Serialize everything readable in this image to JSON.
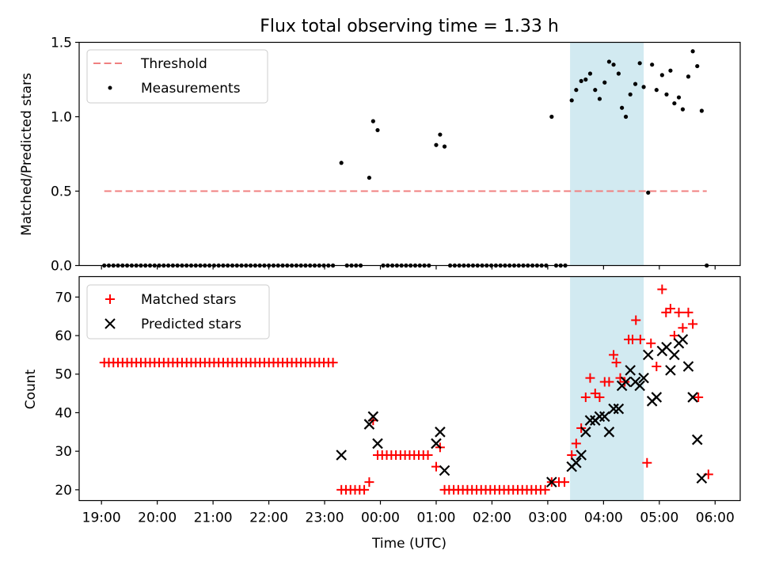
{
  "figure": {
    "title": "Flux total observing time = 1.33 h"
  },
  "chart_data": [
    {
      "type": "scatter",
      "panel": "top",
      "ylabel": "Matched/Predicted stars",
      "xlabel": "",
      "ylim": [
        0,
        1.5
      ],
      "yticks": [
        "0.0",
        "0.5",
        "1.0",
        "1.5"
      ],
      "threshold": {
        "label": "Threshold",
        "value": 0.5,
        "x_start": 19.05,
        "x_end": 29.85,
        "color": "#f08080"
      },
      "shaded_region": {
        "x_start": 27.4,
        "x_end": 28.72,
        "color": "#add8e6"
      },
      "legend": {
        "position": "top-left",
        "entries": [
          "Threshold",
          "Measurements"
        ]
      },
      "series": [
        {
          "name": "Measurements",
          "color": "#000000",
          "points": [
            [
              23.3,
              0.69
            ],
            [
              23.8,
              0.59
            ],
            [
              23.87,
              0.97
            ],
            [
              23.95,
              0.91
            ],
            [
              25.0,
              0.81
            ],
            [
              25.07,
              0.88
            ],
            [
              25.15,
              0.8
            ],
            [
              27.07,
              1.0
            ],
            [
              27.43,
              1.11
            ],
            [
              27.51,
              1.18
            ],
            [
              27.6,
              1.24
            ],
            [
              27.68,
              1.25
            ],
            [
              27.76,
              1.29
            ],
            [
              27.85,
              1.18
            ],
            [
              27.93,
              1.12
            ],
            [
              28.02,
              1.23
            ],
            [
              28.1,
              1.37
            ],
            [
              28.18,
              1.35
            ],
            [
              28.27,
              1.29
            ],
            [
              28.33,
              1.06
            ],
            [
              28.4,
              1.0
            ],
            [
              28.48,
              1.15
            ],
            [
              28.57,
              1.22
            ],
            [
              28.65,
              1.36
            ],
            [
              28.72,
              1.2
            ],
            [
              28.8,
              0.49
            ],
            [
              28.87,
              1.35
            ],
            [
              28.95,
              1.18
            ],
            [
              29.05,
              1.28
            ],
            [
              29.13,
              1.15
            ],
            [
              29.2,
              1.31
            ],
            [
              29.27,
              1.09
            ],
            [
              29.35,
              1.13
            ],
            [
              29.42,
              1.05
            ],
            [
              29.52,
              1.27
            ],
            [
              29.6,
              1.44
            ],
            [
              29.68,
              1.34
            ],
            [
              29.76,
              1.04
            ],
            [
              29.85,
              0.0
            ]
          ],
          "zero_runs": [
            {
              "from": 19.05,
              "to": 23.2,
              "step": 0.082
            },
            {
              "from": 23.4,
              "to": 23.72,
              "step": 0.082
            },
            {
              "from": 24.05,
              "to": 24.93,
              "step": 0.082
            },
            {
              "from": 25.25,
              "to": 27.0,
              "step": 0.082
            },
            {
              "from": 27.15,
              "to": 27.35,
              "step": 0.082
            }
          ]
        }
      ]
    },
    {
      "type": "scatter",
      "panel": "bottom",
      "ylabel": "Count",
      "xlabel": "Time (UTC)",
      "ylim": [
        17.2,
        75.3
      ],
      "yticks": [
        "20",
        "30",
        "40",
        "50",
        "60",
        "70"
      ],
      "xlim": [
        18.6,
        30.45
      ],
      "xticks": [
        "19:00",
        "20:00",
        "21:00",
        "22:00",
        "23:00",
        "00:00",
        "01:00",
        "02:00",
        "03:00",
        "04:00",
        "05:00",
        "06:00"
      ],
      "shaded_region": {
        "x_start": 27.4,
        "x_end": 28.72,
        "color": "#add8e6"
      },
      "legend": {
        "position": "top-left",
        "entries": [
          "Matched stars",
          "Predicted stars"
        ]
      },
      "series": [
        {
          "name": "Matched stars",
          "marker": "plus",
          "color": "#ff0000",
          "runs": [
            {
              "from": 19.05,
              "to": 23.2,
              "step": 0.082,
              "value": 53
            },
            {
              "from": 23.3,
              "to": 23.72,
              "step": 0.082,
              "value": 20
            },
            {
              "from": 23.95,
              "to": 24.93,
              "step": 0.082,
              "value": 29
            },
            {
              "from": 25.15,
              "to": 27.0,
              "step": 0.082,
              "value": 20
            }
          ],
          "points": [
            [
              23.8,
              22
            ],
            [
              23.87,
              38
            ],
            [
              25.0,
              26
            ],
            [
              25.07,
              31
            ],
            [
              27.07,
              22
            ],
            [
              27.2,
              22
            ],
            [
              27.3,
              22
            ],
            [
              27.43,
              29
            ],
            [
              27.51,
              32
            ],
            [
              27.6,
              36
            ],
            [
              27.68,
              44
            ],
            [
              27.76,
              49
            ],
            [
              27.85,
              45
            ],
            [
              27.93,
              44
            ],
            [
              28.02,
              48
            ],
            [
              28.1,
              48
            ],
            [
              28.18,
              55
            ],
            [
              28.23,
              53
            ],
            [
              28.3,
              49
            ],
            [
              28.38,
              48
            ],
            [
              28.45,
              59
            ],
            [
              28.52,
              59
            ],
            [
              28.58,
              64
            ],
            [
              28.66,
              59
            ],
            [
              28.78,
              27
            ],
            [
              28.85,
              58
            ],
            [
              28.95,
              52
            ],
            [
              29.05,
              72
            ],
            [
              29.12,
              66
            ],
            [
              29.2,
              67
            ],
            [
              29.27,
              60
            ],
            [
              29.35,
              66
            ],
            [
              29.42,
              62
            ],
            [
              29.52,
              66
            ],
            [
              29.6,
              63
            ],
            [
              29.7,
              44
            ],
            [
              29.88,
              24
            ]
          ]
        },
        {
          "name": "Predicted stars",
          "marker": "x",
          "color": "#000000",
          "points": [
            [
              23.3,
              29
            ],
            [
              23.8,
              37
            ],
            [
              23.87,
              39
            ],
            [
              23.95,
              32
            ],
            [
              25.0,
              32
            ],
            [
              25.07,
              35
            ],
            [
              25.15,
              25
            ],
            [
              27.07,
              22
            ],
            [
              27.43,
              26
            ],
            [
              27.51,
              27
            ],
            [
              27.6,
              29
            ],
            [
              27.68,
              35
            ],
            [
              27.76,
              38
            ],
            [
              27.85,
              38
            ],
            [
              27.93,
              39
            ],
            [
              28.02,
              39
            ],
            [
              28.1,
              35
            ],
            [
              28.18,
              41
            ],
            [
              28.27,
              41
            ],
            [
              28.33,
              47
            ],
            [
              28.4,
              48
            ],
            [
              28.48,
              51
            ],
            [
              28.57,
              48
            ],
            [
              28.65,
              47
            ],
            [
              28.72,
              49
            ],
            [
              28.8,
              55
            ],
            [
              28.87,
              43
            ],
            [
              28.95,
              44
            ],
            [
              29.05,
              56
            ],
            [
              29.13,
              57
            ],
            [
              29.2,
              51
            ],
            [
              29.27,
              55
            ],
            [
              29.35,
              58
            ],
            [
              29.42,
              59
            ],
            [
              29.52,
              52
            ],
            [
              29.6,
              44
            ],
            [
              29.68,
              33
            ],
            [
              29.76,
              23
            ]
          ]
        }
      ]
    }
  ]
}
